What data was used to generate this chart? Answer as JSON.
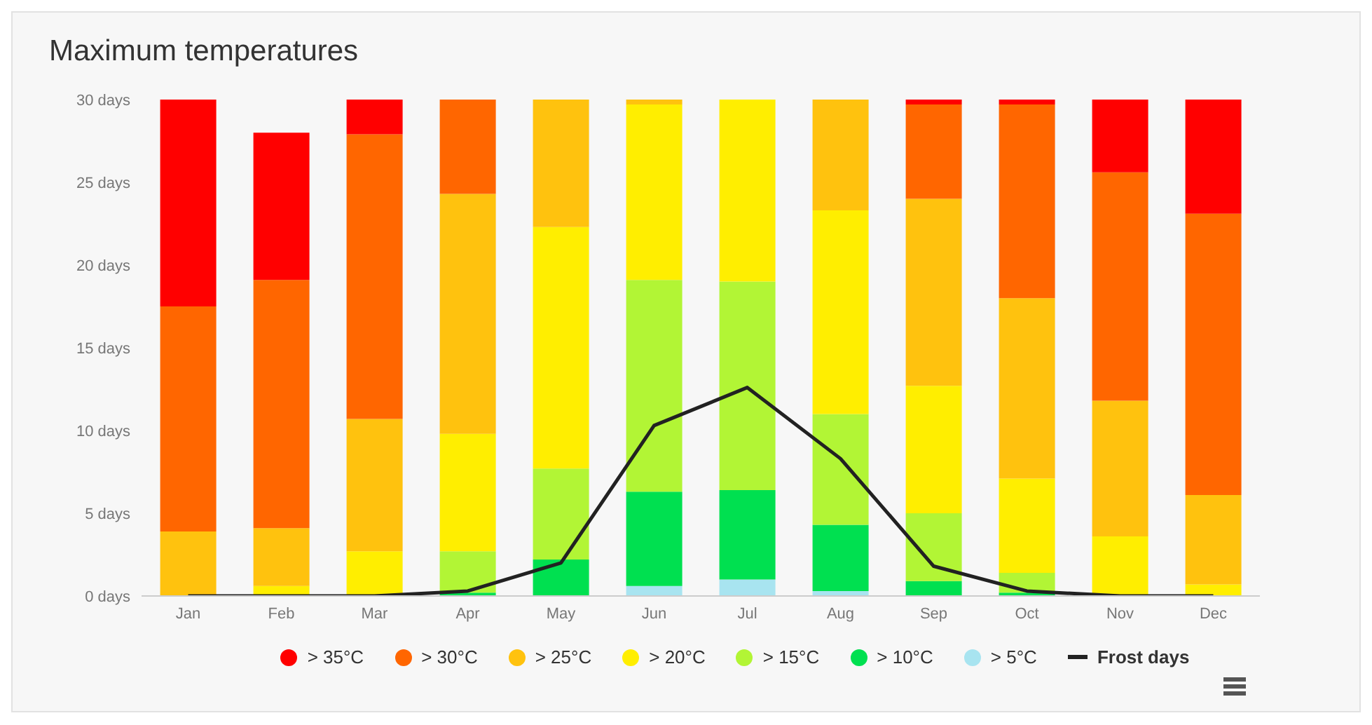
{
  "chart_data": {
    "type": "bar",
    "title": "Maximum temperatures",
    "stacked": true,
    "categories": [
      "Jan",
      "Feb",
      "Mar",
      "Apr",
      "May",
      "Jun",
      "Jul",
      "Aug",
      "Sep",
      "Oct",
      "Nov",
      "Dec"
    ],
    "series": [
      {
        "name": "> 5°C",
        "color": "#a8e4f0",
        "values": [
          0,
          0,
          0,
          0,
          0,
          0.6,
          1.0,
          0.3,
          0,
          0,
          0,
          0
        ]
      },
      {
        "name": "> 10°C",
        "color": "#00e050",
        "values": [
          0,
          0,
          0,
          0.2,
          2.2,
          5.7,
          5.4,
          4.0,
          0.9,
          0.2,
          0,
          0
        ]
      },
      {
        "name": "> 15°C",
        "color": "#b2f535",
        "values": [
          0,
          0,
          0,
          2.5,
          5.5,
          12.8,
          12.6,
          6.7,
          4.1,
          1.2,
          0,
          0
        ]
      },
      {
        "name": "> 20°C",
        "color": "#ffee00",
        "values": [
          0,
          0.6,
          2.7,
          7.1,
          14.6,
          10.6,
          11.0,
          12.3,
          7.7,
          5.7,
          3.6,
          0.7
        ]
      },
      {
        "name": "> 25°C",
        "color": "#ffc20e",
        "values": [
          3.9,
          3.5,
          8.0,
          14.5,
          7.7,
          0.3,
          0,
          6.7,
          11.3,
          10.9,
          8.2,
          5.4
        ]
      },
      {
        "name": "> 30°C",
        "color": "#ff6600",
        "values": [
          13.6,
          15.0,
          17.2,
          5.7,
          0,
          0,
          0,
          0,
          5.7,
          11.7,
          13.8,
          17.0
        ]
      },
      {
        "name": "> 35°C",
        "color": "#ff0000",
        "values": [
          12.5,
          8.9,
          2.1,
          0,
          0,
          0,
          0,
          0,
          0.3,
          0.3,
          4.4,
          6.9
        ]
      },
      {
        "name": "Frost days",
        "type": "line",
        "color": "#222222",
        "values": [
          0,
          0,
          0,
          0.3,
          2.0,
          10.3,
          12.6,
          8.3,
          1.8,
          0.3,
          0,
          0
        ]
      }
    ],
    "ylim": [
      0,
      30
    ],
    "yticks": [
      {
        "value": 0,
        "label": "0 days"
      },
      {
        "value": 5,
        "label": "5 days"
      },
      {
        "value": 10,
        "label": "10 days"
      },
      {
        "value": 15,
        "label": "15 days"
      },
      {
        "value": 20,
        "label": "20 days"
      },
      {
        "value": 25,
        "label": "25 days"
      },
      {
        "value": 30,
        "label": "30 days"
      }
    ],
    "legend": "bottom",
    "marker": "none",
    "grid": false
  }
}
